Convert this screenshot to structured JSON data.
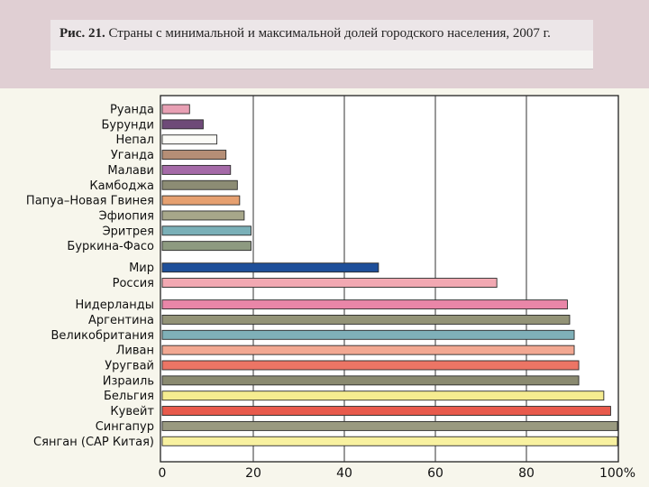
{
  "header": {
    "fig_number": "Рис. 21.",
    "title": "Страны с минимальной и максимальной долей городского населения, 2007 г."
  },
  "chart_data": {
    "type": "bar",
    "orientation": "horizontal",
    "title": "Рис. 21. Страны с минимальной и максимальной долей городского населения, 2007 г.",
    "xlabel": "",
    "ylabel": "",
    "xlim": [
      0,
      100
    ],
    "grid": true,
    "legend": "none",
    "x_ticks": [
      {
        "value": 0,
        "label": "0"
      },
      {
        "value": 20,
        "label": "20"
      },
      {
        "value": 40,
        "label": "40"
      },
      {
        "value": 60,
        "label": "60"
      },
      {
        "value": 80,
        "label": "80"
      },
      {
        "value": 100,
        "label": "100%"
      }
    ],
    "groups": [
      {
        "items": [
          {
            "label": "Руанда",
            "value": 6,
            "color": "#e8a0b4"
          },
          {
            "label": "Бурунди",
            "value": 9,
            "color": "#6e4a78"
          },
          {
            "label": "Непал",
            "value": 12,
            "color": "#fbfbf7"
          },
          {
            "label": "Уганда",
            "value": 14,
            "color": "#b58e76"
          },
          {
            "label": "Малави",
            "value": 15,
            "color": "#a56aa8"
          },
          {
            "label": "Камбоджа",
            "value": 16.5,
            "color": "#8c8c74"
          },
          {
            "label": "Папуа–Новая Гвинея",
            "value": 17,
            "color": "#e6a070"
          },
          {
            "label": "Эфиопия",
            "value": 18,
            "color": "#a7a78a"
          },
          {
            "label": "Эритрея",
            "value": 19.5,
            "color": "#7ab0b8"
          },
          {
            "label": "Буркина-Фасо",
            "value": 19.5,
            "color": "#8d9a80"
          }
        ]
      },
      {
        "items": [
          {
            "label": "Мир",
            "value": 47.5,
            "color": "#1e4f9a"
          },
          {
            "label": "Россия",
            "value": 73.5,
            "color": "#f2a8b2"
          }
        ]
      },
      {
        "items": [
          {
            "label": "Нидерланды",
            "value": 89,
            "color": "#e986a8"
          },
          {
            "label": "Аргентина",
            "value": 89.5,
            "color": "#939377"
          },
          {
            "label": "Великобритания",
            "value": 90.5,
            "color": "#7fb0b8"
          },
          {
            "label": "Ливан",
            "value": 90.5,
            "color": "#f2a892"
          },
          {
            "label": "Уругвай",
            "value": 91.5,
            "color": "#ec7565"
          },
          {
            "label": "Израиль",
            "value": 91.5,
            "color": "#8a8a70"
          },
          {
            "label": "Бельгия",
            "value": 97,
            "color": "#f5ec90"
          },
          {
            "label": "Кувейт",
            "value": 98.5,
            "color": "#e85a4c"
          },
          {
            "label": "Сингапур",
            "value": 100,
            "color": "#9a9a80"
          },
          {
            "label": "Сянган (САР Китая)",
            "value": 100,
            "color": "#f8f1a0"
          }
        ]
      }
    ]
  }
}
